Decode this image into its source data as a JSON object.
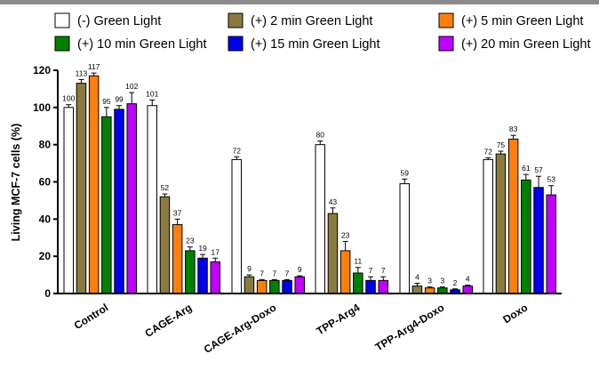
{
  "chart_data": {
    "type": "bar",
    "title": "",
    "xlabel": "",
    "ylabel": "Living MCF-7 cells (%)",
    "ylim": [
      0,
      120
    ],
    "yticks": [
      0,
      20,
      40,
      60,
      80,
      100,
      120
    ],
    "grid": false,
    "legend_position": "top",
    "categories": [
      "Control",
      "CAGE-Arg",
      "CAGE-Arg-Doxo",
      "TPP-Arg4",
      "TPP-Arg4-Doxo",
      "Doxo"
    ],
    "series": [
      {
        "name": "(-) Green Light",
        "color": "#ffffff",
        "values": [
          100,
          101,
          72,
          80,
          59,
          72
        ],
        "errors": [
          1.5,
          3,
          1.5,
          2,
          2.5,
          1
        ]
      },
      {
        "name": "(+) 2 min Green Light",
        "color": "#8a7a40",
        "values": [
          113,
          52,
          9,
          43,
          4,
          75
        ],
        "errors": [
          2,
          1.5,
          1,
          3,
          1.5,
          1.5
        ]
      },
      {
        "name": "(+) 5 min Green Light",
        "color": "#ff7f0e",
        "values": [
          117,
          37,
          7,
          23,
          3,
          83
        ],
        "errors": [
          1.5,
          3,
          0.5,
          5,
          0.5,
          2
        ]
      },
      {
        "name": "(+) 10 min Green Light",
        "color": "#008000",
        "values": [
          95,
          23,
          7,
          11,
          3,
          61
        ],
        "errors": [
          5,
          2,
          0.5,
          3,
          0.5,
          3
        ]
      },
      {
        "name": "(+) 15 min Green Light",
        "color": "#0000ee",
        "values": [
          99,
          19,
          7,
          7,
          2,
          57
        ],
        "errors": [
          2,
          2,
          0.5,
          2,
          0.5,
          6
        ]
      },
      {
        "name": "(+) 20 min Green Light",
        "color": "#bf00ff",
        "values": [
          102,
          17,
          9,
          7,
          4,
          53
        ],
        "errors": [
          6,
          2,
          0.5,
          2,
          0.5,
          5
        ]
      }
    ],
    "value_labels": [
      [
        "100",
        "113",
        "117",
        "95",
        "99",
        "102"
      ],
      [
        "101",
        "52",
        "37",
        "23",
        "19",
        "17"
      ],
      [
        "72",
        "9",
        "7",
        "7",
        "7",
        "9"
      ],
      [
        "80",
        "43",
        "23",
        "11",
        "7",
        "7"
      ],
      [
        "59",
        "4",
        "3",
        "3",
        "2",
        "4"
      ],
      [
        "72",
        "75",
        "83",
        "61",
        "57",
        "53"
      ]
    ]
  }
}
